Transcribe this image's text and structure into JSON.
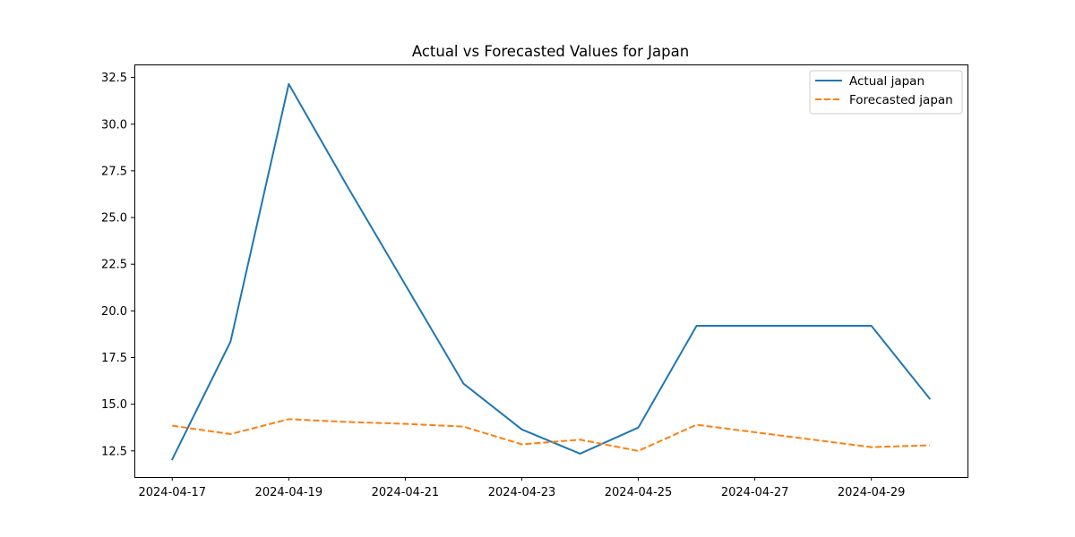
{
  "chart_data": {
    "type": "line",
    "title": "Actual vs Forecasted Values for Japan",
    "xlabel": "",
    "ylabel": "",
    "x": [
      "2024-04-17",
      "2024-04-18",
      "2024-04-19",
      "2024-04-20",
      "2024-04-21",
      "2024-04-22",
      "2024-04-23",
      "2024-04-24",
      "2024-04-25",
      "2024-04-26",
      "2024-04-27",
      "2024-04-28",
      "2024-04-29",
      "2024-04-30"
    ],
    "xlim": [
      "2024-04-16.35",
      "2024-04-30.65"
    ],
    "ylim": [
      11.1,
      33.2
    ],
    "x_ticks": [
      "2024-04-17",
      "2024-04-19",
      "2024-04-21",
      "2024-04-23",
      "2024-04-25",
      "2024-04-27",
      "2024-04-29"
    ],
    "y_ticks": [
      "12.5",
      "15.0",
      "17.5",
      "20.0",
      "22.5",
      "25.0",
      "27.5",
      "30.0",
      "32.5"
    ],
    "grid": false,
    "legend_position": "upper right",
    "series": [
      {
        "name": "Actual japan",
        "color": "#1f77b4",
        "style": "solid",
        "values": [
          12.05,
          18.35,
          32.15,
          26.7,
          21.4,
          16.1,
          13.65,
          12.35,
          13.75,
          19.2,
          19.2,
          19.2,
          19.2,
          15.3
        ]
      },
      {
        "name": "Forecasted japan",
        "color": "#ff7f0e",
        "style": "dashed",
        "values": [
          13.85,
          13.4,
          14.2,
          14.05,
          13.95,
          13.8,
          12.85,
          13.1,
          12.5,
          13.9,
          13.5,
          13.1,
          12.7,
          12.8
        ]
      }
    ]
  }
}
